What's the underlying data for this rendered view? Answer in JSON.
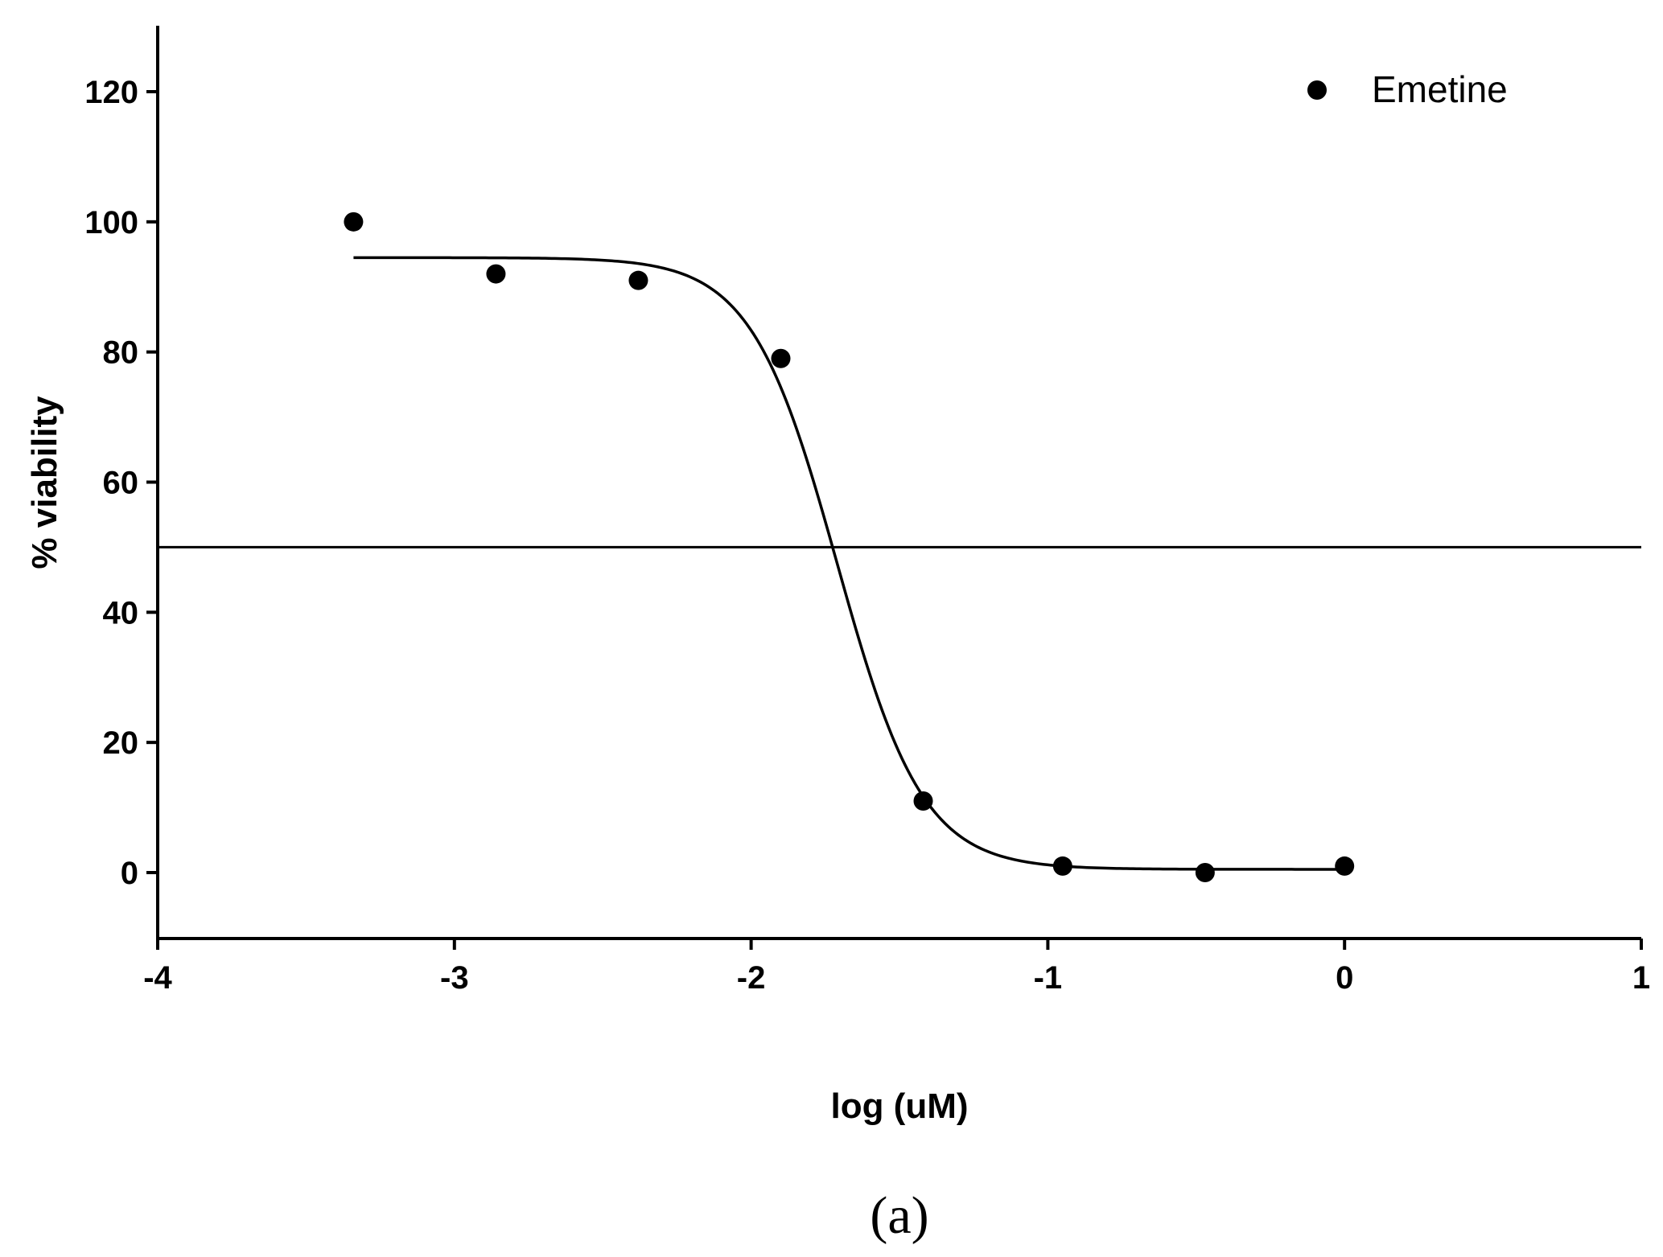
{
  "chart_data": {
    "type": "scatter",
    "title": "",
    "xlabel": "log (uM)",
    "ylabel": "% viability",
    "xlim": [
      -4,
      1
    ],
    "ylim": [
      -10,
      130
    ],
    "x_ticks": [
      -4,
      -3,
      -2,
      -1,
      0,
      1
    ],
    "y_ticks": [
      0,
      20,
      40,
      60,
      80,
      100,
      120
    ],
    "x_tick_labels": [
      "-4",
      "-3",
      "-2",
      "-1",
      "0",
      "1"
    ],
    "y_tick_labels": [
      "0",
      "20",
      "40",
      "60",
      "80",
      "100",
      "120"
    ],
    "grid": false,
    "legend_position": "top-right",
    "series": [
      {
        "name": "Emetine",
        "marker": "circle",
        "color": "#000000",
        "x": [
          -3.34,
          -2.86,
          -2.38,
          -1.9,
          -1.42,
          -0.95,
          -0.47,
          0.0
        ],
        "y": [
          100,
          92,
          91,
          79,
          11,
          1,
          0,
          1
        ]
      }
    ],
    "fit_curve": {
      "model": "four-parameter logistic",
      "top": 94.5,
      "bottom": 0.5,
      "log_ic50": -1.71,
      "hill_slope": -3.0,
      "x_range": [
        -3.34,
        0.0
      ]
    },
    "reference_line": {
      "y": 50,
      "color": "#000000"
    },
    "colors": {
      "marker": "#000000",
      "line": "#000000",
      "background": "#ffffff"
    }
  },
  "panel_label": "(a)"
}
